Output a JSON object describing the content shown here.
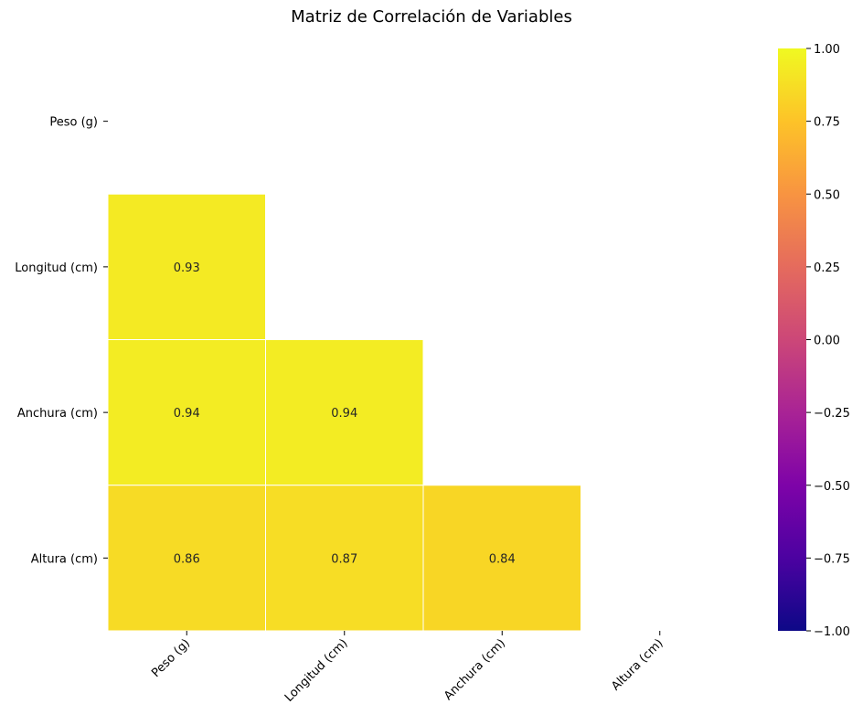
{
  "chart_data": {
    "type": "heatmap",
    "title": "Matriz de Correlación de Variables",
    "xlabel": "",
    "ylabel": "",
    "x_labels": [
      "Peso (g)",
      "Longitud (cm)",
      "Anchura (cm)",
      "Altura (cm)"
    ],
    "y_labels": [
      "Peso (g)",
      "Longitud (cm)",
      "Anchura (cm)",
      "Altura (cm)"
    ],
    "mask": "upper-triangle-including-diagonal",
    "cells": [
      {
        "row": 1,
        "col": 0,
        "value": 0.93,
        "label": "0.93"
      },
      {
        "row": 2,
        "col": 0,
        "value": 0.94,
        "label": "0.94"
      },
      {
        "row": 2,
        "col": 1,
        "value": 0.94,
        "label": "0.94"
      },
      {
        "row": 3,
        "col": 0,
        "value": 0.86,
        "label": "0.86"
      },
      {
        "row": 3,
        "col": 1,
        "value": 0.87,
        "label": "0.87"
      },
      {
        "row": 3,
        "col": 2,
        "value": 0.84,
        "label": "0.84"
      }
    ],
    "colormap": "plasma",
    "colorbar": {
      "vmin": -1.0,
      "vmax": 1.0,
      "tick_values": [
        1.0,
        0.75,
        0.5,
        0.25,
        0.0,
        -0.25,
        -0.5,
        -0.75,
        -1.0
      ],
      "tick_labels": [
        "1.00",
        "0.75",
        "0.50",
        "0.25",
        "0.00",
        "−0.25",
        "−0.50",
        "−0.75",
        "−1.00"
      ],
      "position": "right"
    },
    "cell_border_color": "#ffffff",
    "annotation_color": "#262626"
  }
}
